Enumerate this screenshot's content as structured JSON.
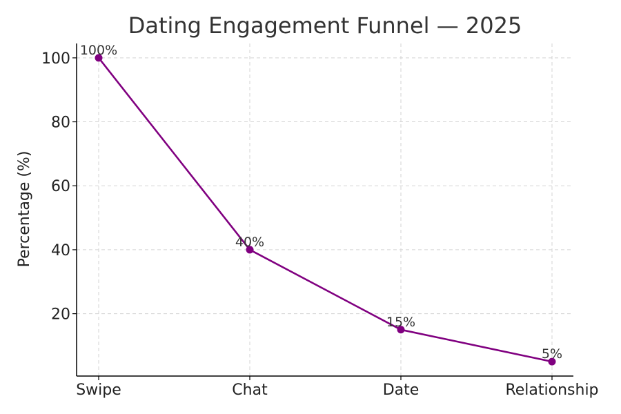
{
  "chart_data": {
    "type": "line",
    "title": "Dating Engagement Funnel — 2025",
    "xlabel": "",
    "ylabel": "Percentage (%)",
    "categories": [
      "Swipe",
      "Chat",
      "Date",
      "Relationship"
    ],
    "series": [
      {
        "values": [
          100,
          40,
          15,
          5
        ],
        "data_labels": [
          "100%",
          "40%",
          "15%",
          "5%"
        ],
        "color": "#800080"
      }
    ],
    "yticks": [
      20,
      40,
      60,
      80,
      100
    ],
    "ylim": [
      0.5,
      104.5
    ],
    "grid": true,
    "legend": "none"
  }
}
